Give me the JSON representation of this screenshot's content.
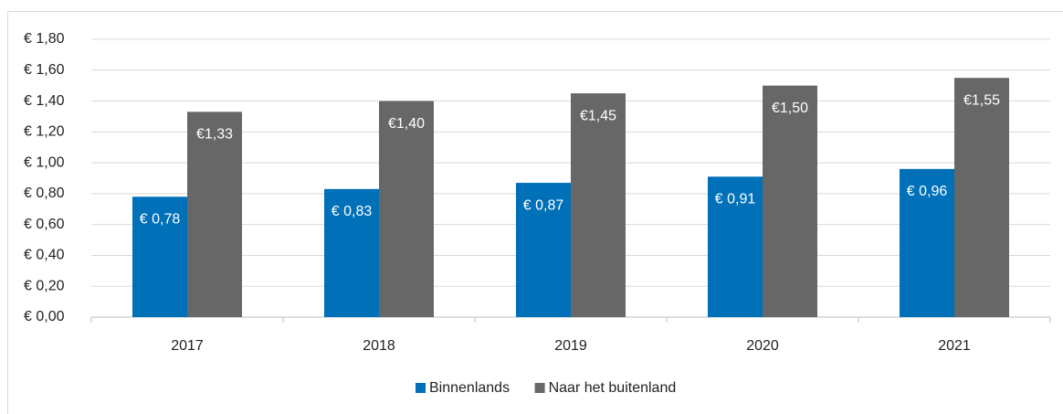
{
  "chart_data": {
    "type": "bar",
    "categories": [
      "2017",
      "2018",
      "2019",
      "2020",
      "2021"
    ],
    "series": [
      {
        "name": "Binnenlands",
        "color": "#0070b8",
        "values": [
          0.78,
          0.83,
          0.87,
          0.91,
          0.96
        ],
        "value_labels": [
          "€ 0,78",
          "€ 0,83",
          "€ 0,87",
          "€ 0,91",
          "€ 0,96"
        ]
      },
      {
        "name": "Naar het buitenland",
        "color": "#676767",
        "values": [
          1.33,
          1.4,
          1.45,
          1.5,
          1.55
        ],
        "value_labels": [
          "€1,33",
          "€1,40",
          "€1,45",
          "€1,50",
          "€1,55"
        ]
      }
    ],
    "ylim": [
      0,
      1.8
    ],
    "yticks": [
      {
        "value": 0,
        "label": "€ 0,00"
      },
      {
        "value": 0.2,
        "label": "€ 0,20"
      },
      {
        "value": 0.4,
        "label": "€ 0,40"
      },
      {
        "value": 0.6,
        "label": "€ 0,60"
      },
      {
        "value": 0.8,
        "label": "€ 0,80"
      },
      {
        "value": 1.0,
        "label": "€ 1,00"
      },
      {
        "value": 1.2,
        "label": "€ 1,20"
      },
      {
        "value": 1.4,
        "label": "€ 1,40"
      },
      {
        "value": 1.6,
        "label": "€ 1,60"
      },
      {
        "value": 1.8,
        "label": "€ 1,80"
      }
    ],
    "grid": true,
    "legend": "bottom"
  }
}
